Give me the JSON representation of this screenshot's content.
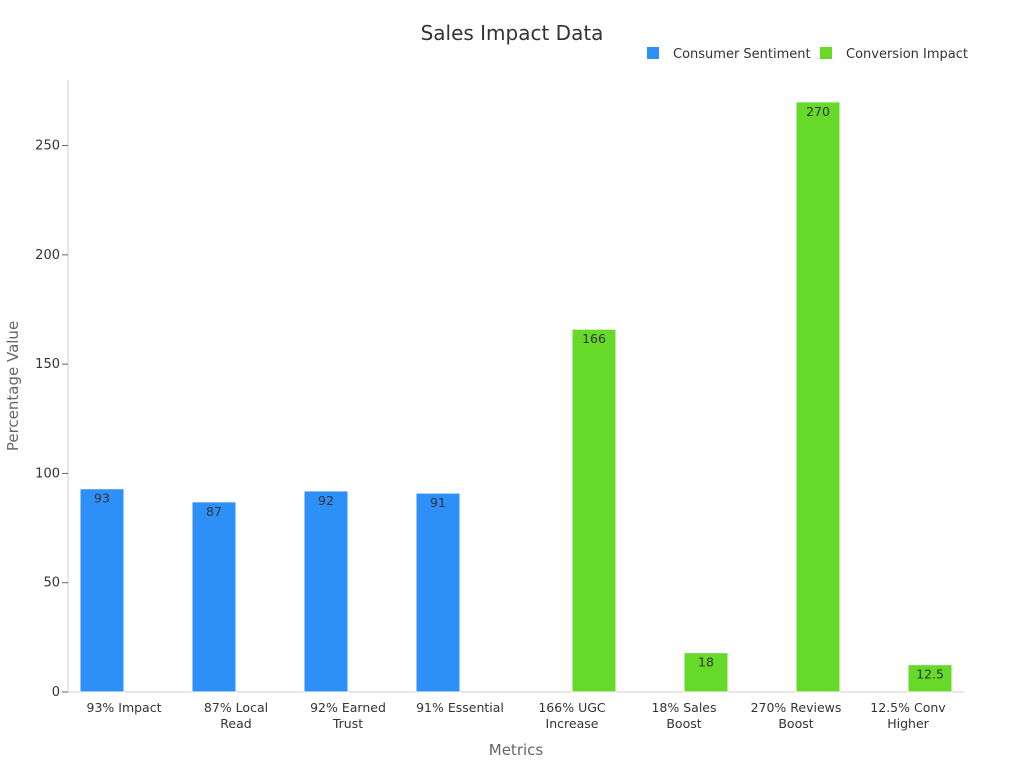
{
  "chart_data": {
    "type": "bar",
    "title": "Sales Impact Data",
    "xlabel": "Metrics",
    "ylabel": "Percentage Value",
    "ylim": [
      0,
      280
    ],
    "yticks": [
      0,
      50,
      100,
      150,
      200,
      250
    ],
    "categories": [
      [
        "93% Impact"
      ],
      [
        "87% Local",
        "Read"
      ],
      [
        "92% Earned",
        "Trust"
      ],
      [
        "91% Essential"
      ],
      [
        "166% UGC",
        "Increase"
      ],
      [
        "18% Sales",
        "Boost"
      ],
      [
        "270% Reviews",
        "Boost"
      ],
      [
        "12.5% Conv",
        "Higher"
      ]
    ],
    "legend_position": "top-right",
    "series": [
      {
        "name": "Consumer Sentiment",
        "color": "#2d8ff8",
        "values": [
          93,
          87,
          92,
          91,
          null,
          null,
          null,
          null
        ],
        "labels": [
          "93",
          "87",
          "92",
          "91",
          "",
          "",
          "",
          ""
        ]
      },
      {
        "name": "Conversion Impact",
        "color": "#66d929",
        "values": [
          null,
          null,
          null,
          null,
          166,
          18,
          270,
          12.5
        ],
        "labels": [
          "",
          "",
          "",
          "",
          "166",
          "18",
          "270",
          "12.5"
        ]
      }
    ]
  }
}
